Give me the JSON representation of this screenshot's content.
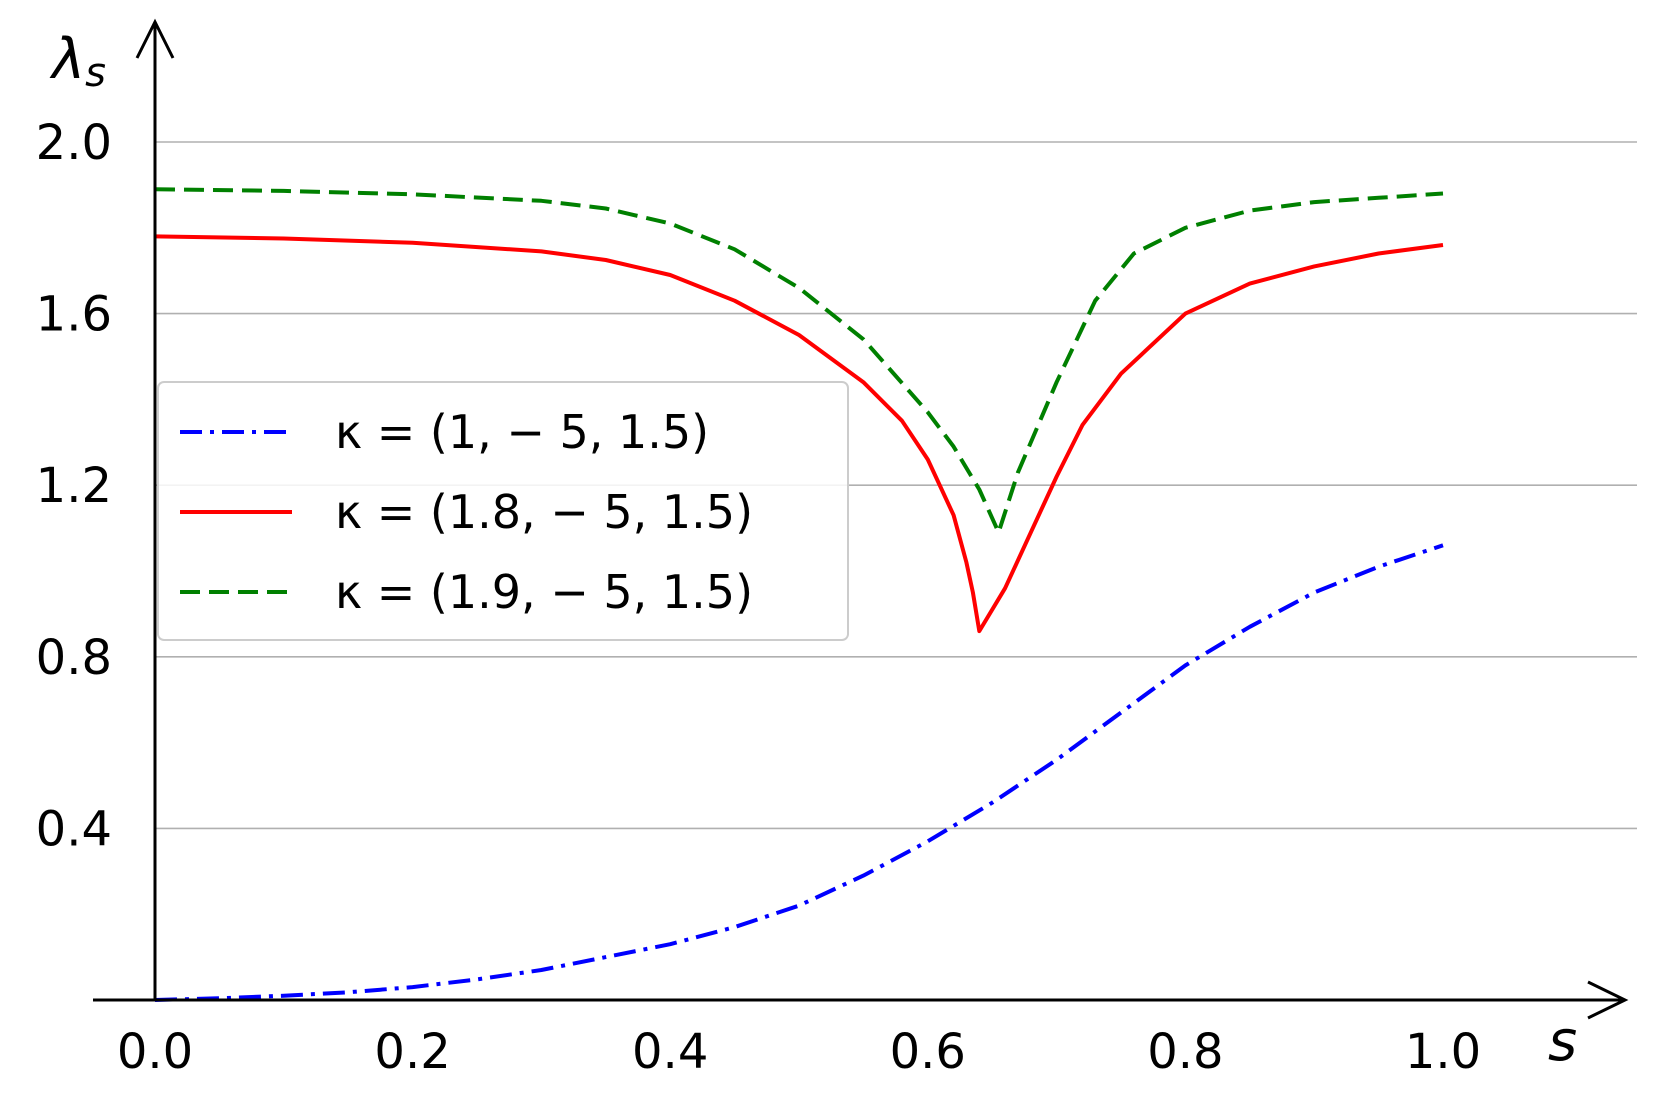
{
  "chart_data": {
    "type": "line",
    "title": "",
    "xlabel": "s",
    "ylabel": "λ",
    "ylabel_sub": "s",
    "xlim": [
      -0.06,
      1.13
    ],
    "ylim": [
      -0.05,
      2.28
    ],
    "x_ticks": [
      0.0,
      0.2,
      0.4,
      0.6,
      0.8,
      1.0
    ],
    "x_tick_labels": [
      "0.0",
      "0.2",
      "0.4",
      "0.6",
      "0.8",
      "1.0"
    ],
    "y_ticks": [
      0.4,
      0.8,
      1.2,
      1.6,
      2.0
    ],
    "y_tick_labels": [
      "0.4",
      "0.8",
      "1.2",
      "1.6",
      "2.0"
    ],
    "grid": "horizontal",
    "legend_position": "center-left",
    "series": [
      {
        "name": "κ = (1, − 5, 1.5)",
        "color": "#0000ff",
        "style": "dashdot",
        "x": [
          0.0,
          0.05,
          0.1,
          0.15,
          0.2,
          0.25,
          0.3,
          0.35,
          0.4,
          0.45,
          0.5,
          0.55,
          0.6,
          0.65,
          0.7,
          0.75,
          0.8,
          0.85,
          0.9,
          0.95,
          1.0
        ],
        "y": [
          0.0,
          0.004,
          0.01,
          0.018,
          0.03,
          0.048,
          0.07,
          0.1,
          0.13,
          0.17,
          0.22,
          0.29,
          0.37,
          0.46,
          0.56,
          0.67,
          0.78,
          0.87,
          0.95,
          1.01,
          1.06
        ]
      },
      {
        "name": "κ = (1.8, − 5, 1.5)",
        "color": "#ff0000",
        "style": "solid",
        "x": [
          0.0,
          0.1,
          0.2,
          0.3,
          0.35,
          0.4,
          0.45,
          0.5,
          0.55,
          0.58,
          0.6,
          0.62,
          0.63,
          0.635,
          0.64,
          0.66,
          0.68,
          0.7,
          0.72,
          0.75,
          0.8,
          0.85,
          0.9,
          0.95,
          1.0
        ],
        "y": [
          1.78,
          1.775,
          1.765,
          1.745,
          1.725,
          1.69,
          1.63,
          1.55,
          1.44,
          1.35,
          1.26,
          1.13,
          1.02,
          0.95,
          0.86,
          0.96,
          1.09,
          1.22,
          1.34,
          1.46,
          1.6,
          1.67,
          1.71,
          1.74,
          1.76
        ]
      },
      {
        "name": "κ = (1.9, − 5, 1.5)",
        "color": "#008000",
        "style": "dashed",
        "x": [
          0.0,
          0.1,
          0.2,
          0.3,
          0.35,
          0.4,
          0.45,
          0.5,
          0.55,
          0.6,
          0.62,
          0.64,
          0.655,
          0.67,
          0.7,
          0.73,
          0.76,
          0.8,
          0.85,
          0.9,
          0.95,
          1.0
        ],
        "y": [
          1.89,
          1.886,
          1.878,
          1.863,
          1.845,
          1.81,
          1.75,
          1.66,
          1.54,
          1.37,
          1.29,
          1.19,
          1.09,
          1.23,
          1.44,
          1.63,
          1.74,
          1.8,
          1.84,
          1.86,
          1.87,
          1.88
        ]
      }
    ]
  }
}
